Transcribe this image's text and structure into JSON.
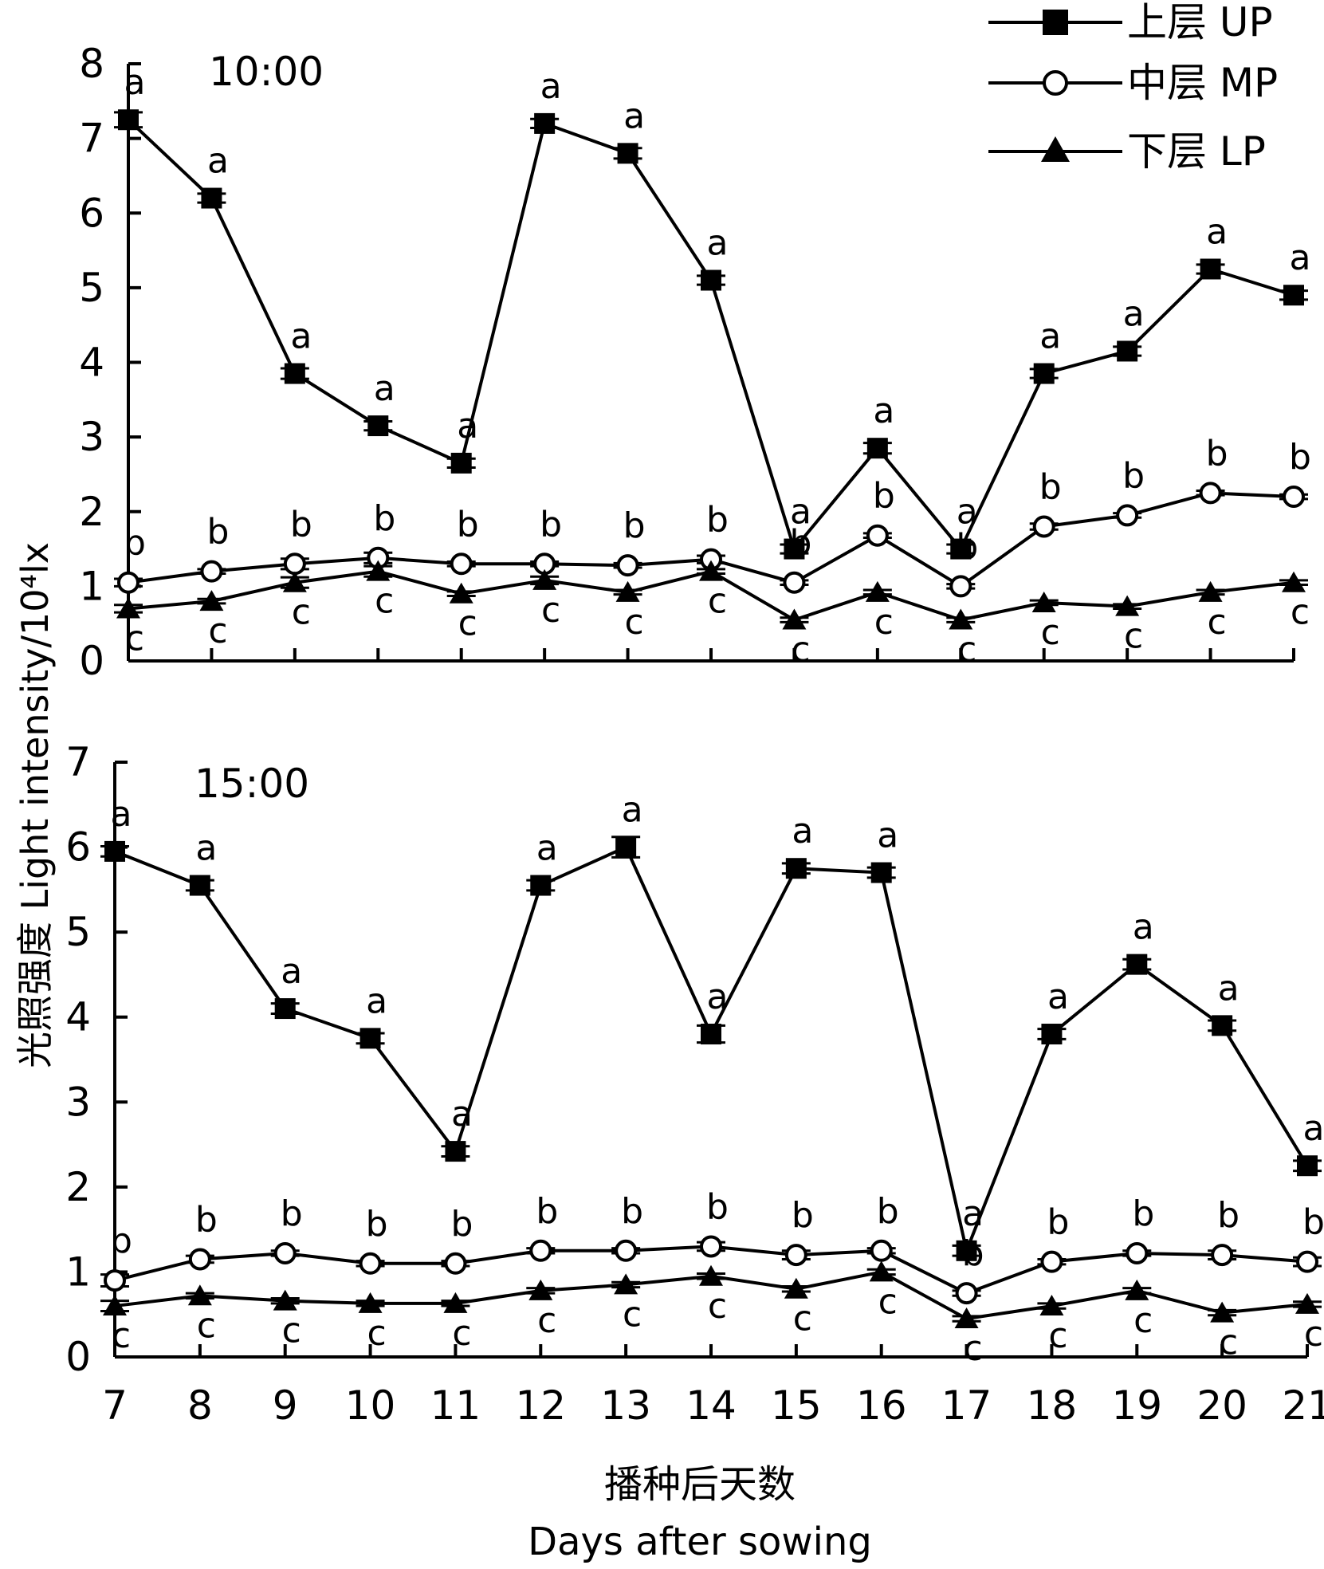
{
  "chart_data": {
    "type": "line",
    "ylabel": "光照强度 Light intensity/10⁴lx",
    "xlabel_cn": "播种后天数",
    "xlabel_en": "Days after sowing",
    "legend": [
      {
        "label": "上层 UP",
        "marker": "filled-square"
      },
      {
        "label": "中层 MP",
        "marker": "open-circle"
      },
      {
        "label": "下层 LP",
        "marker": "filled-triangle"
      }
    ],
    "legend_position": "top-right",
    "grid": false,
    "x": [
      7,
      8,
      9,
      10,
      11,
      12,
      13,
      14,
      15,
      16,
      17,
      18,
      19,
      20,
      21
    ],
    "panels": [
      {
        "time": "10:00",
        "ylim": [
          0,
          8
        ],
        "yticks": [
          0,
          1,
          2,
          3,
          4,
          5,
          6,
          7,
          8
        ],
        "series": [
          {
            "name": "上层 UP",
            "values": [
              7.25,
              6.2,
              3.85,
              3.15,
              2.65,
              7.2,
              6.8,
              5.1,
              1.5,
              2.85,
              1.5,
              3.85,
              4.15,
              5.25,
              4.9
            ],
            "errors": [
              0.1,
              0.06,
              0.07,
              0.06,
              0.06,
              0.06,
              0.07,
              0.06,
              0.06,
              0.07,
              0.06,
              0.06,
              0.06,
              0.06,
              0.06
            ],
            "labels": [
              "a",
              "a",
              "a",
              "a",
              "a",
              "a",
              "a",
              "a",
              "a",
              "a",
              "a",
              "a",
              "a",
              "a",
              "a"
            ]
          },
          {
            "name": "中层 MP",
            "values": [
              1.05,
              1.2,
              1.3,
              1.38,
              1.3,
              1.3,
              1.28,
              1.36,
              1.05,
              1.68,
              1.0,
              1.8,
              1.95,
              2.25,
              2.2
            ],
            "errors": [
              0.05,
              0.03,
              0.07,
              0.07,
              0.03,
              0.03,
              0.03,
              0.05,
              0.03,
              0.03,
              0.03,
              0.04,
              0.03,
              0.03,
              0.03
            ],
            "labels": [
              "b",
              "b",
              "b",
              "b",
              "b",
              "b",
              "b",
              "b",
              "b",
              "b",
              "b",
              "b",
              "b",
              "b",
              "b"
            ]
          },
          {
            "name": "下层 LP",
            "values": [
              0.7,
              0.8,
              1.05,
              1.2,
              0.9,
              1.08,
              0.92,
              1.2,
              0.55,
              0.92,
              0.55,
              0.78,
              0.73,
              0.92,
              1.05
            ],
            "errors": [
              0.05,
              0.03,
              0.07,
              0.07,
              0.03,
              0.05,
              0.03,
              0.03,
              0.03,
              0.03,
              0.03,
              0.03,
              0.03,
              0.03,
              0.03
            ],
            "labels": [
              "c",
              "c",
              "c",
              "c",
              "c",
              "c",
              "c",
              "c",
              "c",
              "c",
              "c",
              "c",
              "c",
              "c",
              "c"
            ]
          }
        ]
      },
      {
        "time": "15:00",
        "ylim": [
          0,
          7
        ],
        "yticks": [
          0,
          1,
          2,
          3,
          4,
          5,
          6,
          7
        ],
        "series": [
          {
            "name": "上层 UP",
            "values": [
              5.95,
              5.55,
              4.1,
              3.75,
              2.42,
              5.55,
              6.0,
              3.8,
              5.75,
              5.7,
              1.25,
              3.8,
              4.62,
              3.9,
              2.25
            ],
            "errors": [
              0.06,
              0.06,
              0.06,
              0.06,
              0.06,
              0.06,
              0.12,
              0.1,
              0.06,
              0.06,
              0.06,
              0.06,
              0.06,
              0.06,
              0.06
            ],
            "labels": [
              "a",
              "a",
              "a",
              "a",
              "a",
              "a",
              "a",
              "a",
              "a",
              "a",
              "a",
              "a",
              "a",
              "a",
              "a"
            ]
          },
          {
            "name": "中层 MP",
            "values": [
              0.9,
              1.15,
              1.22,
              1.1,
              1.1,
              1.25,
              1.25,
              1.3,
              1.2,
              1.25,
              0.75,
              1.12,
              1.22,
              1.2,
              1.12
            ],
            "errors": [
              0.07,
              0.04,
              0.03,
              0.03,
              0.03,
              0.03,
              0.03,
              0.05,
              0.05,
              0.03,
              0.03,
              0.03,
              0.03,
              0.05,
              0.05
            ],
            "labels": [
              "b",
              "b",
              "b",
              "b",
              "b",
              "b",
              "b",
              "b",
              "b",
              "b",
              "b",
              "b",
              "b",
              "b",
              "b"
            ]
          },
          {
            "name": "下层 LP",
            "values": [
              0.6,
              0.72,
              0.66,
              0.63,
              0.63,
              0.78,
              0.85,
              0.95,
              0.8,
              1.0,
              0.45,
              0.6,
              0.78,
              0.52,
              0.62
            ],
            "errors": [
              0.06,
              0.03,
              0.03,
              0.03,
              0.03,
              0.03,
              0.03,
              0.03,
              0.03,
              0.03,
              0.03,
              0.03,
              0.03,
              0.03,
              0.03
            ],
            "labels": [
              "c",
              "c",
              "c",
              "c",
              "c",
              "c",
              "c",
              "c",
              "c",
              "c",
              "c",
              "c",
              "c",
              "c",
              "c"
            ]
          }
        ]
      }
    ]
  }
}
